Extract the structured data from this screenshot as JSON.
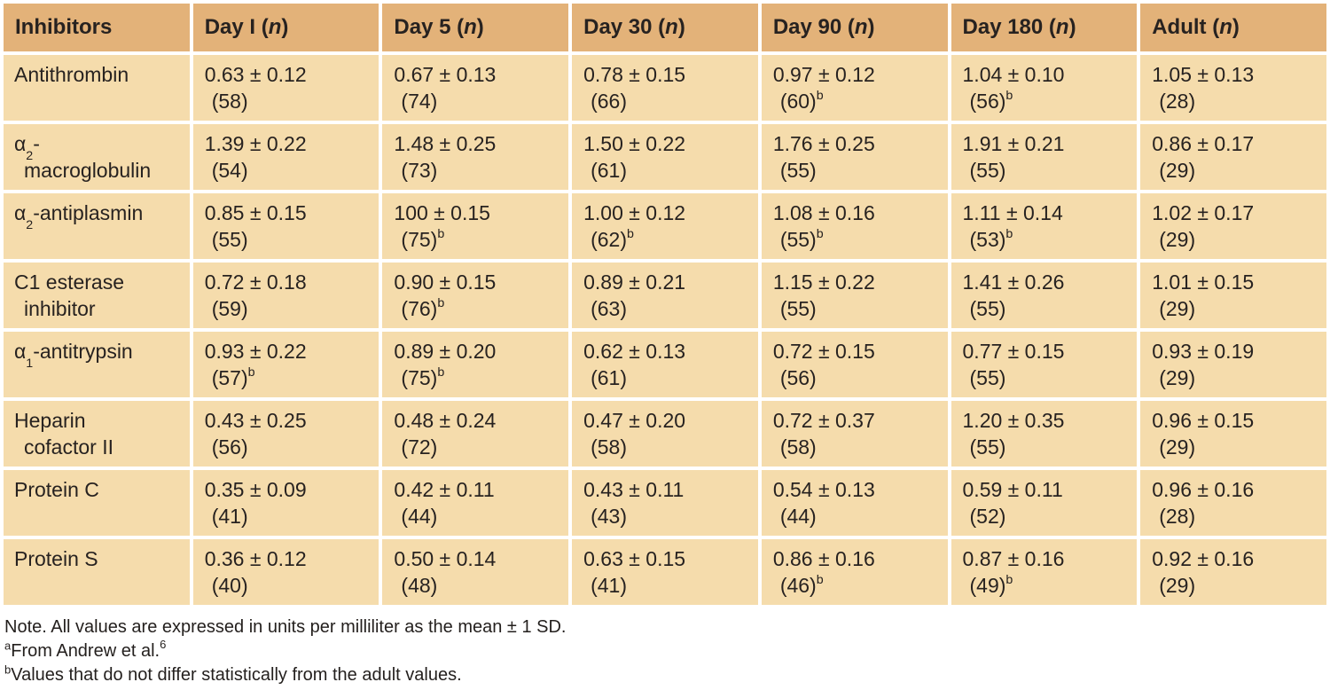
{
  "colors": {
    "header_bg": "#e3b279",
    "cell_bg": "#f5dcac",
    "divider": "#ffffff",
    "page_bg": "#ffffff",
    "text": "#272220"
  },
  "table": {
    "columns": [
      "Inhibitors",
      "Day I (n)",
      "Day 5 (n)",
      "Day 30 (n)",
      "Day 90 (n)",
      "Day 180 (n)",
      "Adult (n)"
    ],
    "rows": [
      {
        "label_lines": [
          "Antithrombin"
        ],
        "cells": [
          {
            "value": "0.63 ± 0.12",
            "n": "(58)"
          },
          {
            "value": "0.67 ± 0.13",
            "n": "(74)"
          },
          {
            "value": "0.78 ± 0.15",
            "n": "(66)"
          },
          {
            "value": "0.97 ± 0.12",
            "n": "(60)",
            "sup": "b"
          },
          {
            "value": "1.04 ± 0.10",
            "n": "(56)",
            "sup": "b"
          },
          {
            "value": "1.05 ± 0.13",
            "n": "(28)"
          }
        ]
      },
      {
        "label_lines": [
          "α{2}-",
          "macroglobulin"
        ],
        "cells": [
          {
            "value": "1.39 ± 0.22",
            "n": "(54)"
          },
          {
            "value": "1.48 ± 0.25",
            "n": "(73)"
          },
          {
            "value": "1.50 ± 0.22",
            "n": "(61)"
          },
          {
            "value": "1.76 ± 0.25",
            "n": "(55)"
          },
          {
            "value": "1.91 ± 0.21",
            "n": "(55)"
          },
          {
            "value": "0.86 ± 0.17",
            "n": "(29)"
          }
        ]
      },
      {
        "label_lines": [
          "α{2}-antiplasmin"
        ],
        "cells": [
          {
            "value": "0.85 ± 0.15",
            "n": "(55)"
          },
          {
            "value": "100 ± 0.15",
            "n": "(75)",
            "sup": "b"
          },
          {
            "value": "1.00 ± 0.12",
            "n": "(62)",
            "sup": "b"
          },
          {
            "value": "1.08 ± 0.16",
            "n": "(55)",
            "sup": "b"
          },
          {
            "value": "1.11 ± 0.14",
            "n": "(53)",
            "sup": "b"
          },
          {
            "value": "1.02 ± 0.17",
            "n": "(29)"
          }
        ]
      },
      {
        "label_lines": [
          "C1 esterase",
          "inhibitor"
        ],
        "cells": [
          {
            "value": "0.72 ± 0.18",
            "n": "(59)"
          },
          {
            "value": "0.90 ± 0.15",
            "n": "(76)",
            "sup": "b"
          },
          {
            "value": "0.89 ± 0.21",
            "n": "(63)"
          },
          {
            "value": "1.15 ± 0.22",
            "n": "(55)"
          },
          {
            "value": "1.41 ± 0.26",
            "n": "(55)"
          },
          {
            "value": "1.01 ± 0.15",
            "n": "(29)"
          }
        ]
      },
      {
        "label_lines": [
          "α{1}-antitrypsin"
        ],
        "cells": [
          {
            "value": "0.93 ± 0.22",
            "n": "(57)",
            "sup": "b"
          },
          {
            "value": "0.89 ± 0.20",
            "n": "(75)",
            "sup": "b"
          },
          {
            "value": "0.62 ± 0.13",
            "n": "(61)"
          },
          {
            "value": "0.72 ± 0.15",
            "n": "(56)"
          },
          {
            "value": "0.77 ± 0.15",
            "n": "(55)"
          },
          {
            "value": "0.93 ± 0.19",
            "n": "(29)"
          }
        ]
      },
      {
        "label_lines": [
          "Heparin",
          "cofactor II"
        ],
        "cells": [
          {
            "value": "0.43 ± 0.25",
            "n": "(56)"
          },
          {
            "value": "0.48 ± 0.24",
            "n": "(72)"
          },
          {
            "value": "0.47 ± 0.20",
            "n": "(58)"
          },
          {
            "value": "0.72 ± 0.37",
            "n": "(58)"
          },
          {
            "value": "1.20 ± 0.35",
            "n": "(55)"
          },
          {
            "value": "0.96 ± 0.15",
            "n": "(29)"
          }
        ]
      },
      {
        "label_lines": [
          "Protein C"
        ],
        "cells": [
          {
            "value": "0.35 ± 0.09",
            "n": "(41)"
          },
          {
            "value": "0.42 ± 0.11",
            "n": "(44)"
          },
          {
            "value": "0.43 ± 0.11",
            "n": "(43)"
          },
          {
            "value": "0.54 ± 0.13",
            "n": "(44)"
          },
          {
            "value": "0.59 ± 0.11",
            "n": "(52)"
          },
          {
            "value": "0.96 ± 0.16",
            "n": "(28)"
          }
        ]
      },
      {
        "label_lines": [
          "Protein S"
        ],
        "cells": [
          {
            "value": "0.36 ± 0.12",
            "n": "(40)"
          },
          {
            "value": "0.50 ± 0.14",
            "n": "(48)"
          },
          {
            "value": "0.63 ± 0.15",
            "n": "(41)"
          },
          {
            "value": "0.86 ± 0.16",
            "n": "(46)",
            "sup": "b"
          },
          {
            "value": "0.87 ± 0.16",
            "n": "(49)",
            "sup": "b"
          },
          {
            "value": "0.92 ± 0.16",
            "n": "(29)"
          }
        ]
      }
    ]
  },
  "footnotes": {
    "note": "Note. All values are expressed in units per milliliter as the mean ± 1 SD.",
    "items": [
      {
        "marker": "a",
        "text": "From Andrew et al.",
        "ref_sup": "6"
      },
      {
        "marker": "b",
        "text": "Values that do not differ statistically from the adult values."
      }
    ]
  }
}
